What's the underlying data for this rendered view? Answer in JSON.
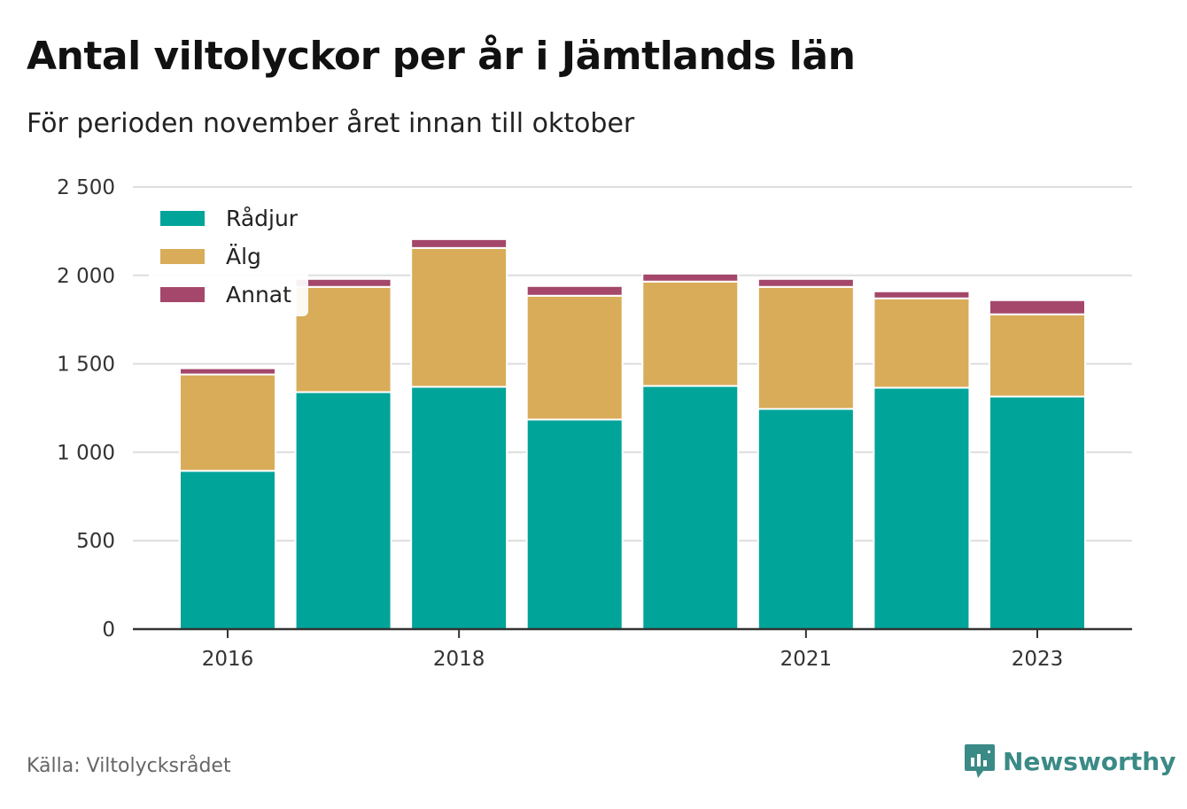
{
  "title": "Antal viltolyckor per år i Jämtlands län",
  "subtitle": "För perioden november året innan till oktober",
  "source": "Källa: Viltolycksrådet",
  "brand": {
    "name": "Newsworthy",
    "icon": "newsworthy-logo-icon",
    "color": "#3a8a86"
  },
  "chart_data": {
    "type": "bar",
    "stacked": true,
    "categories": [
      "2016",
      "2017",
      "2018",
      "2019",
      "2020",
      "2021",
      "2022",
      "2023"
    ],
    "x_tick_labels": [
      "2016",
      "2018",
      "2021",
      "2023"
    ],
    "series": [
      {
        "name": "Rådjur",
        "color": "#00a499",
        "values": [
          895,
          1340,
          1370,
          1185,
          1375,
          1245,
          1365,
          1315
        ]
      },
      {
        "name": "Älg",
        "color": "#d9ac5a",
        "values": [
          545,
          595,
          785,
          700,
          590,
          690,
          505,
          465
        ]
      },
      {
        "name": "Annat",
        "color": "#a4476b",
        "values": [
          35,
          45,
          50,
          55,
          45,
          45,
          40,
          80
        ]
      }
    ],
    "y_ticks": [
      "0",
      "500",
      "1 000",
      "1 500",
      "2 000",
      "2 500"
    ],
    "ylim": [
      0,
      2500
    ],
    "grid": true,
    "legend_position": "top-left"
  }
}
